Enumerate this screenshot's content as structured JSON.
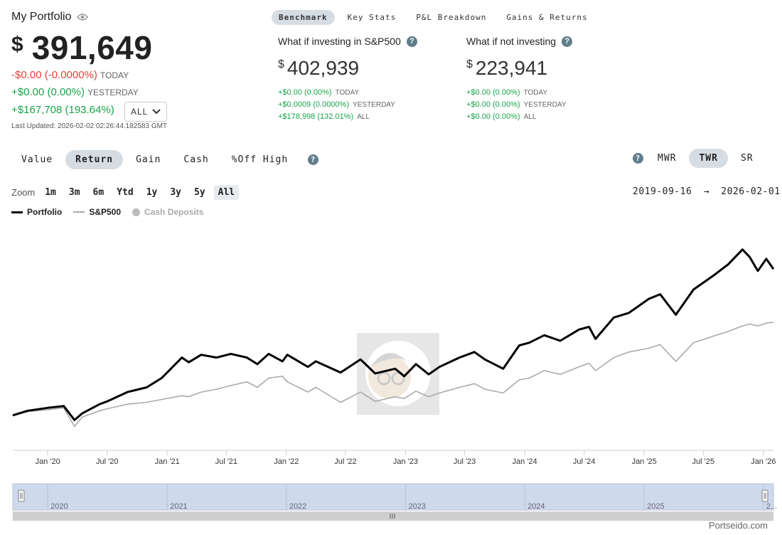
{
  "header": {
    "title": "My Portfolio",
    "currency": "$",
    "total": "391,649",
    "today_change": "-$0.00 (-0.0000%)",
    "today_label": "TODAY",
    "yesterday_change": "+$0.00 (0.00%)",
    "yesterday_label": "YESTERDAY",
    "all_change": "+$167,708 (193.64%)",
    "range_select": "ALL",
    "last_updated": "Last Updated: 2026-02-02 02:26:44.182583 GMT"
  },
  "top_tabs": [
    "Benchmark",
    "Key Stats",
    "P&L Breakdown",
    "Gains & Returns"
  ],
  "benchmarks": [
    {
      "title": "What if investing in S&P500",
      "currency": "$",
      "value": "402,939",
      "rows": [
        {
          "change": "+$0.00 (0.00%)",
          "label": "TODAY"
        },
        {
          "change": "+$0.0009 (0.0000%)",
          "label": "YESTERDAY"
        },
        {
          "change": "+$178,998 (132.01%)",
          "label": "ALL"
        }
      ]
    },
    {
      "title": "What if not investing",
      "currency": "$",
      "value": "223,941",
      "rows": [
        {
          "change": "+$0.00 (0.00%)",
          "label": "TODAY"
        },
        {
          "change": "+$0.00 (0.00%)",
          "label": "YESTERDAY"
        },
        {
          "change": "+$0.00 (0.00%)",
          "label": "ALL"
        }
      ]
    }
  ],
  "mode_tabs": [
    "Value",
    "Return",
    "Gain",
    "Cash",
    "%Off High"
  ],
  "return_tabs": [
    "MWR",
    "TWR",
    "SR"
  ],
  "zoom": {
    "label": "Zoom",
    "options": [
      "1m",
      "3m",
      "6m",
      "Ytd",
      "1y",
      "3y",
      "5y",
      "All"
    ]
  },
  "date_range": {
    "start": "2019-09-16",
    "arrow": "→",
    "end": "2026-02-01"
  },
  "legend": [
    "Portfolio",
    "S&P500",
    "Cash Deposits"
  ],
  "watermark": "Portseido.com",
  "colors": {
    "portfolio": "#000000",
    "sp500": "#aaaaaa",
    "positive": "#1aa34a",
    "negative": "#e5413b",
    "navigator": "#cfd9ec"
  },
  "chart_data": {
    "type": "line",
    "x_ticks": [
      "Jan '20",
      "Jul '20",
      "Jan '21",
      "Jul '21",
      "Jan '22",
      "Jul '22",
      "Jan '23",
      "Jul '23",
      "Jan '24",
      "Jul '24",
      "Jan '25",
      "Jul '25",
      "Jan '26"
    ],
    "navigator_ticks": [
      "2020",
      "2021",
      "2022",
      "2023",
      "2024",
      "2025",
      "2..."
    ],
    "xlim": [
      "2019-09-16",
      "2026-02-01"
    ],
    "series": [
      {
        "name": "Portfolio",
        "x": [
          "2019-09-16",
          "2019-11-01",
          "2020-01-01",
          "2020-02-19",
          "2020-03-23",
          "2020-04-15",
          "2020-06-08",
          "2020-07-01",
          "2020-09-01",
          "2020-10-30",
          "2020-12-15",
          "2021-02-15",
          "2021-03-08",
          "2021-04-15",
          "2021-06-01",
          "2021-07-15",
          "2021-09-02",
          "2021-10-04",
          "2021-11-08",
          "2021-12-20",
          "2022-01-04",
          "2022-03-08",
          "2022-04-01",
          "2022-06-16",
          "2022-08-16",
          "2022-09-30",
          "2022-11-30",
          "2022-12-28",
          "2023-02-02",
          "2023-03-13",
          "2023-04-15",
          "2023-06-15",
          "2023-07-31",
          "2023-09-01",
          "2023-10-27",
          "2023-12-15",
          "2024-01-15",
          "2024-03-01",
          "2024-04-19",
          "2024-06-15",
          "2024-07-16",
          "2024-08-05",
          "2024-09-30",
          "2024-11-15",
          "2025-01-15",
          "2025-02-19",
          "2025-04-08",
          "2025-06-01",
          "2025-08-01",
          "2025-09-15",
          "2025-10-29",
          "2025-11-20",
          "2025-12-15",
          "2026-01-10",
          "2026-02-01"
        ],
        "values": [
          0,
          5,
          8,
          10,
          -5,
          2,
          12,
          15,
          25,
          30,
          40,
          62,
          57,
          65,
          62,
          66,
          62,
          55,
          66,
          58,
          65,
          52,
          58,
          46,
          60,
          45,
          50,
          42,
          55,
          44,
          52,
          62,
          68,
          60,
          50,
          75,
          78,
          86,
          80,
          92,
          95,
          82,
          105,
          110,
          125,
          130,
          108,
          135,
          150,
          162,
          178,
          170,
          155,
          168,
          157
        ]
      },
      {
        "name": "S&P500",
        "x": [
          "2019-09-16",
          "2019-11-01",
          "2020-01-01",
          "2020-02-19",
          "2020-03-23",
          "2020-04-15",
          "2020-06-08",
          "2020-07-01",
          "2020-09-01",
          "2020-10-30",
          "2020-12-15",
          "2021-02-15",
          "2021-03-08",
          "2021-04-15",
          "2021-06-01",
          "2021-07-15",
          "2021-09-02",
          "2021-10-04",
          "2021-11-08",
          "2021-12-20",
          "2022-01-04",
          "2022-03-08",
          "2022-04-01",
          "2022-06-16",
          "2022-08-16",
          "2022-09-30",
          "2022-11-30",
          "2022-12-28",
          "2023-02-02",
          "2023-03-13",
          "2023-04-15",
          "2023-06-15",
          "2023-07-31",
          "2023-09-01",
          "2023-10-27",
          "2023-12-15",
          "2024-01-15",
          "2024-03-01",
          "2024-04-19",
          "2024-06-15",
          "2024-07-16",
          "2024-08-05",
          "2024-09-30",
          "2024-11-15",
          "2025-01-15",
          "2025-02-19",
          "2025-04-08",
          "2025-06-01",
          "2025-08-01",
          "2025-09-15",
          "2025-10-29",
          "2025-11-20",
          "2025-12-15",
          "2026-01-10",
          "2026-02-01"
        ],
        "values": [
          0,
          4,
          6,
          8,
          -12,
          -2,
          5,
          7,
          12,
          14,
          17,
          21,
          20,
          25,
          28,
          32,
          36,
          30,
          40,
          42,
          36,
          25,
          30,
          14,
          25,
          15,
          20,
          18,
          26,
          20,
          24,
          30,
          34,
          28,
          24,
          38,
          40,
          48,
          44,
          52,
          56,
          48,
          62,
          68,
          72,
          76,
          58,
          78,
          85,
          90,
          96,
          98,
          96,
          99,
          100
        ]
      }
    ],
    "ylim": [
      -20,
      190
    ],
    "grid": false,
    "legend_position": "top-left"
  }
}
